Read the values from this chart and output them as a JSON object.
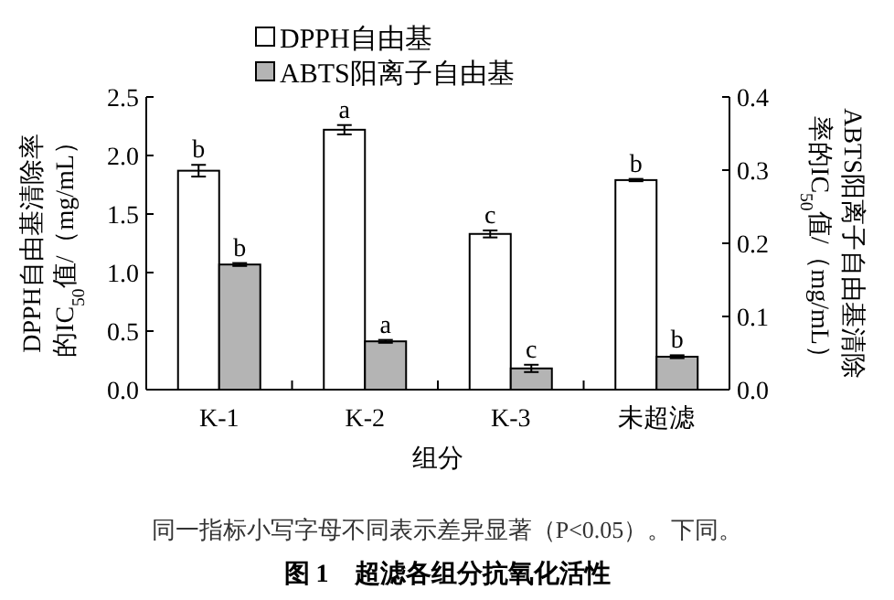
{
  "chart_data": {
    "type": "bar",
    "xlabel": "组分",
    "ylabel": "DPPH自由基清除率的IC$_{50}$值/（mg/mL）",
    "y2label": "ABTS阳离子自由基清除率的IC$_{50}$值/（mg/mL）",
    "categories": [
      "K-1",
      "K-2",
      "K-3",
      "未超滤"
    ],
    "series": [
      {
        "name": "DPPH自由基",
        "color": "#ffffff",
        "values": [
          1.87,
          2.22,
          1.33,
          1.79
        ],
        "errors": [
          0.05,
          0.04,
          0.03,
          0.01
        ],
        "value_labels": [
          "b",
          "a",
          "c",
          "b"
        ]
      },
      {
        "name": "ABTS阳离子自由基",
        "color": "#b4b4b4",
        "axis": "y2",
        "values": [
          0.171,
          0.066,
          0.029,
          0.045
        ],
        "errors": [
          0.002,
          0.002,
          0.005,
          0.002
        ],
        "value_labels": [
          "b",
          "a",
          "c",
          "b"
        ]
      }
    ],
    "ylim": [
      0,
      2.5
    ],
    "yticks": [
      {
        "value": 0,
        "label": "0.0"
      },
      0.5,
      {
        "value": 1,
        "label": "1.0"
      },
      1.5,
      {
        "value": 2,
        "label": "2.0"
      },
      2.5
    ],
    "y2lim": [
      0,
      0.4
    ],
    "y2ticks": [
      {
        "value": 0,
        "label": "0.0"
      },
      0.1,
      0.2,
      0.3,
      0.4
    ],
    "legend": "top",
    "grid": false,
    "annotations": [
      "同一指标小写字母不同表示差异显著（P<0.05）。下同。"
    ],
    "title": "图 1　超滤各组分抗氧化活性"
  }
}
